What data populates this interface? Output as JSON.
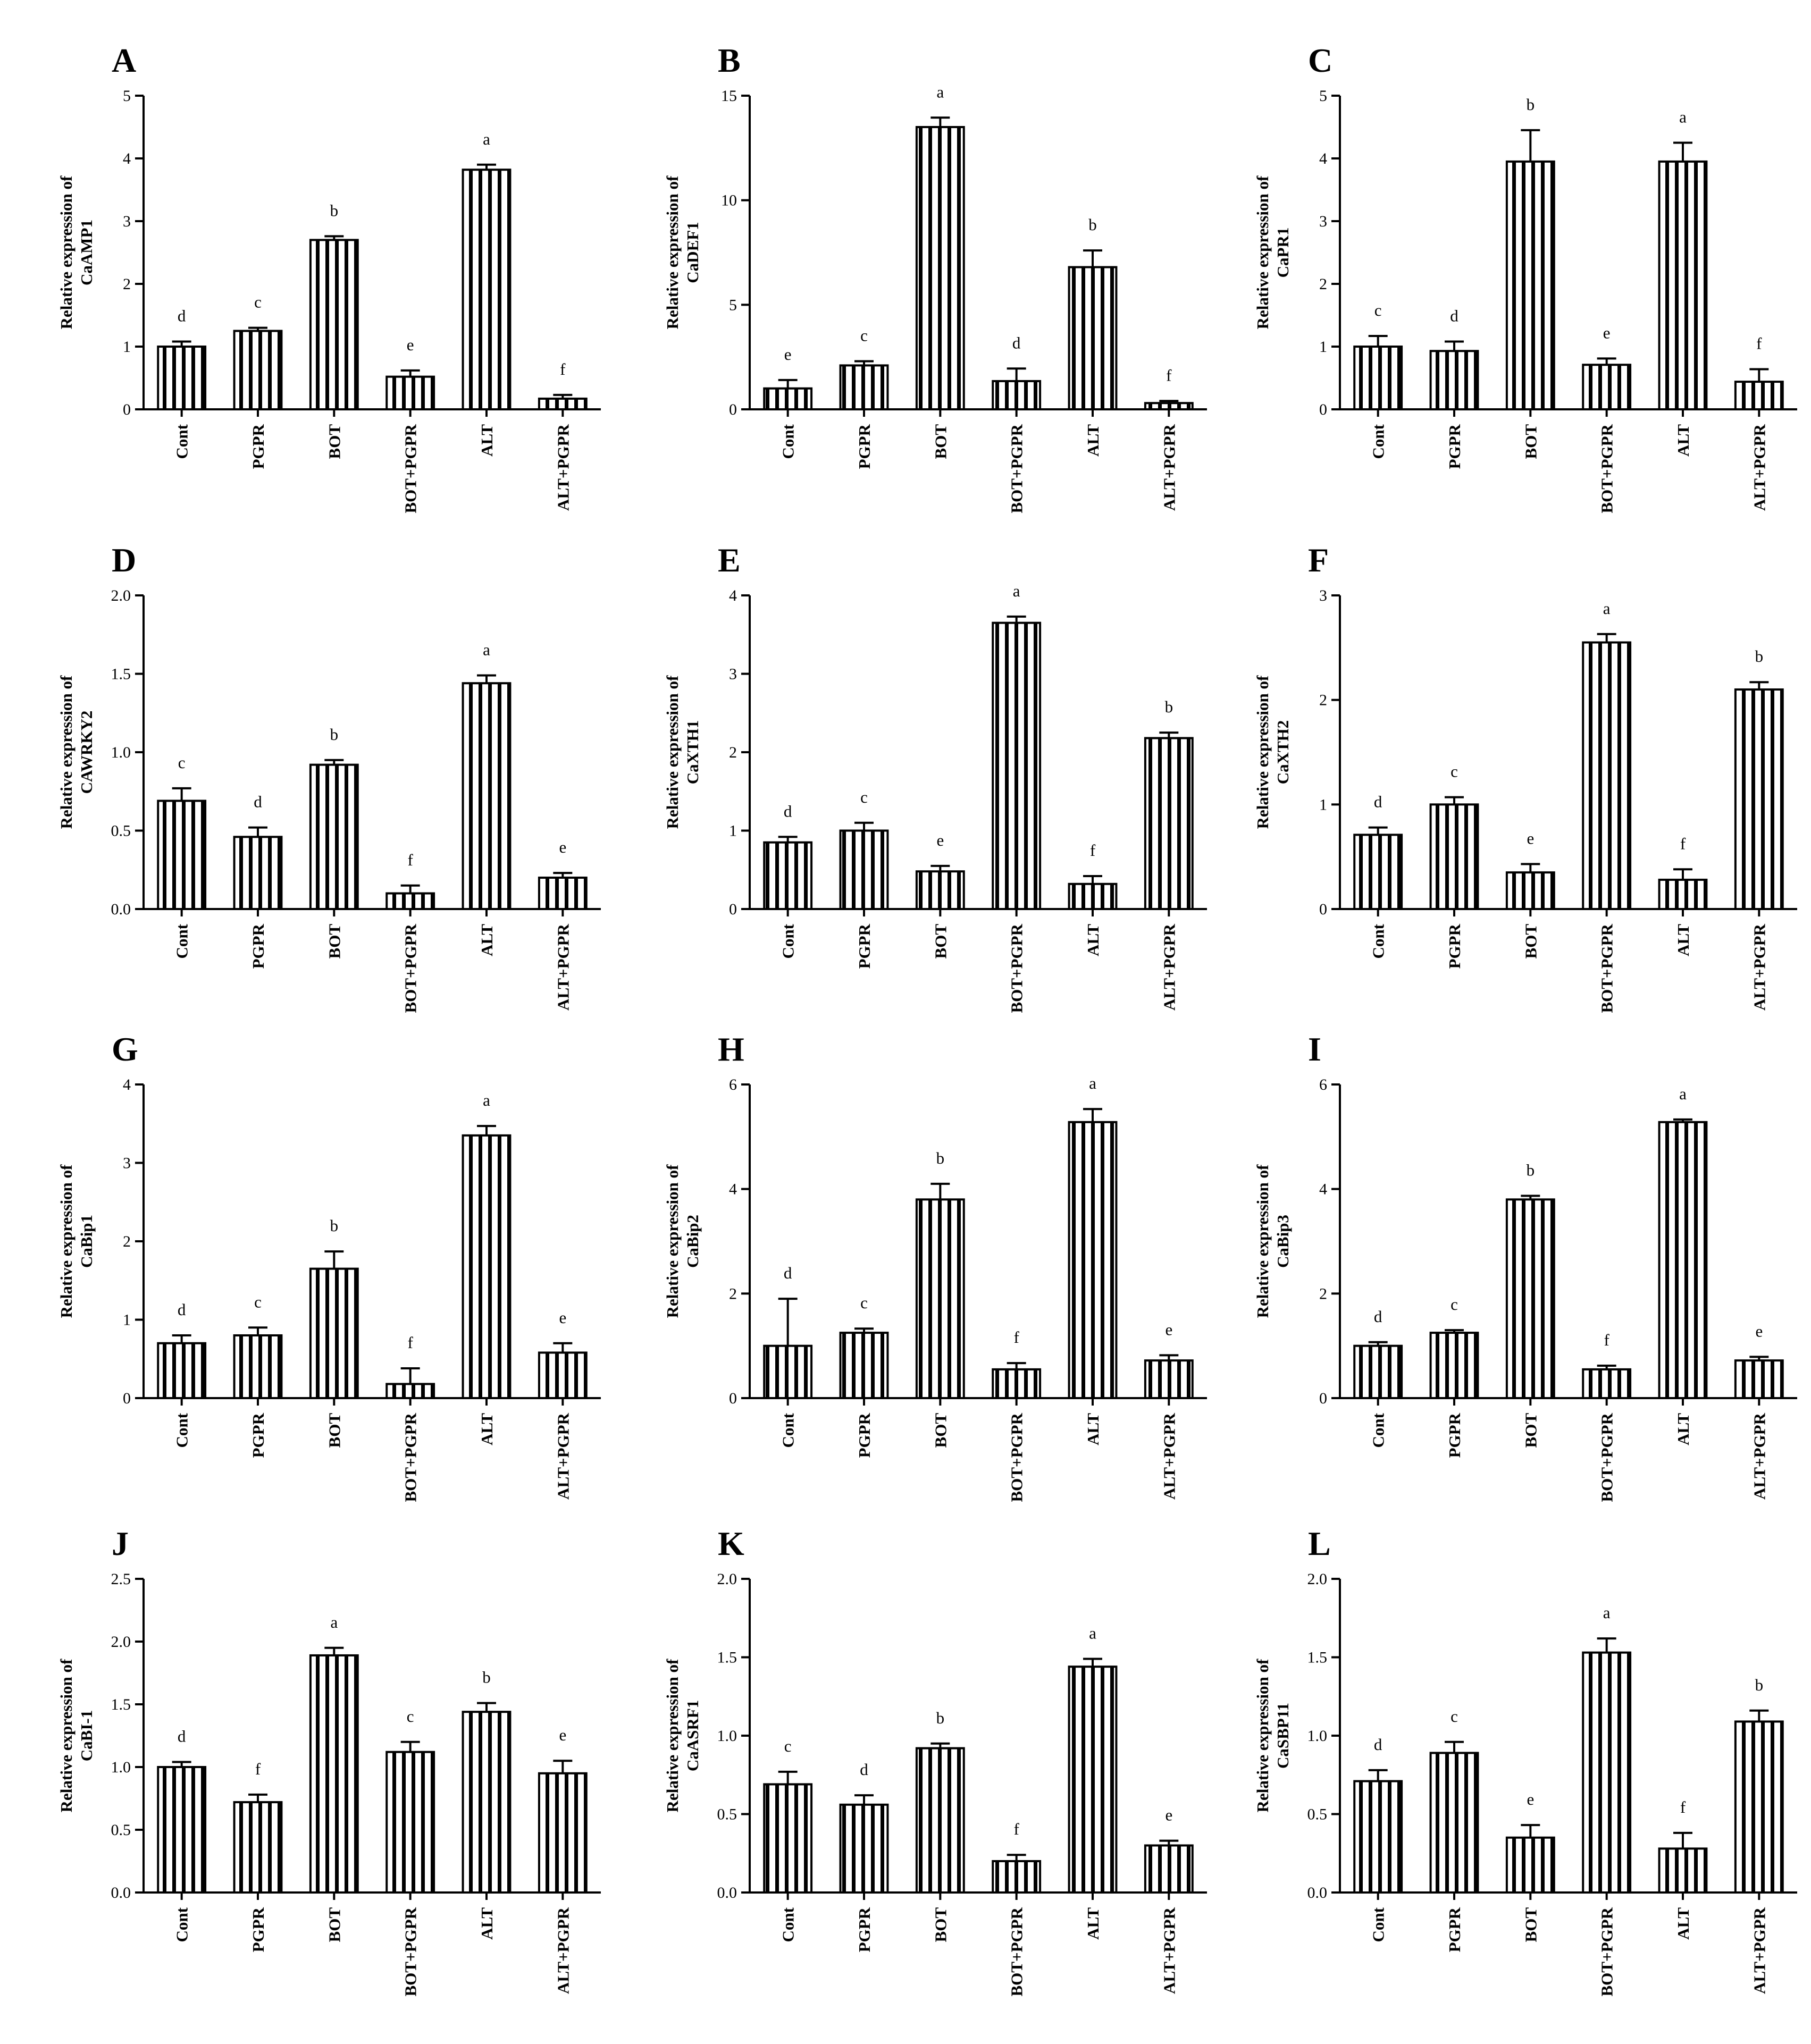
{
  "figure": {
    "background": "#ffffff",
    "bar_fill": "#ffffff",
    "bar_stripe_color": "#000000",
    "bar_pattern": "vertical-stripes"
  },
  "chart_data": [
    {
      "panel": "A",
      "type": "bar",
      "categories": [
        "Cont",
        "PGPR",
        "BOT",
        "BOT+PGPR",
        "ALT",
        "ALT+PGPR"
      ],
      "values": [
        1.0,
        1.25,
        2.7,
        0.52,
        3.82,
        0.17
      ],
      "errors": [
        0.08,
        0.05,
        0.06,
        0.1,
        0.08,
        0.06
      ],
      "letters": [
        "d",
        "c",
        "b",
        "e",
        "a",
        "f"
      ],
      "ylabel": [
        "Relative expression of",
        "CaAMP1"
      ],
      "ylim": [
        0,
        5
      ],
      "yticks": [
        "0",
        "1",
        "2",
        "3",
        "4",
        "5"
      ]
    },
    {
      "panel": "B",
      "type": "bar",
      "categories": [
        "Cont",
        "PGPR",
        "BOT",
        "BOT+PGPR",
        "ALT",
        "ALT+PGPR"
      ],
      "values": [
        1.0,
        2.1,
        13.5,
        1.35,
        6.8,
        0.3
      ],
      "errors": [
        0.4,
        0.2,
        0.45,
        0.6,
        0.8,
        0.1
      ],
      "letters": [
        "e",
        "c",
        "a",
        "d",
        "b",
        "f"
      ],
      "ylabel": [
        "Relative expression of",
        "CaDEF1"
      ],
      "ylim": [
        0,
        15
      ],
      "yticks": [
        "0",
        "5",
        "10",
        "15"
      ]
    },
    {
      "panel": "C",
      "type": "bar",
      "categories": [
        "Cont",
        "PGPR",
        "BOT",
        "BOT+PGPR",
        "ALT",
        "ALT+PGPR"
      ],
      "values": [
        1.0,
        0.93,
        3.95,
        0.71,
        3.95,
        0.44
      ],
      "errors": [
        0.17,
        0.15,
        0.5,
        0.1,
        0.3,
        0.2
      ],
      "letters": [
        "c",
        "d",
        "b",
        "e",
        "a",
        "f"
      ],
      "ylabel": [
        "Relative expression of",
        "CaPR1"
      ],
      "ylim": [
        0,
        5
      ],
      "yticks": [
        "0",
        "1",
        "2",
        "3",
        "4",
        "5"
      ]
    },
    {
      "panel": "D",
      "type": "bar",
      "categories": [
        "Cont",
        "PGPR",
        "BOT",
        "BOT+PGPR",
        "ALT",
        "ALT+PGPR"
      ],
      "values": [
        0.69,
        0.46,
        0.92,
        0.1,
        1.44,
        0.2
      ],
      "errors": [
        0.08,
        0.06,
        0.03,
        0.05,
        0.05,
        0.03
      ],
      "letters": [
        "c",
        "d",
        "b",
        "f",
        "a",
        "e"
      ],
      "ylabel": [
        "Relative expression of",
        "CAWRKY2"
      ],
      "ylim": [
        0,
        2
      ],
      "yticks": [
        "0.0",
        "0.5",
        "1.0",
        "1.5",
        "2.0"
      ]
    },
    {
      "panel": "E",
      "type": "bar",
      "categories": [
        "Cont",
        "PGPR",
        "BOT",
        "BOT+PGPR",
        "ALT",
        "ALT+PGPR"
      ],
      "values": [
        0.85,
        1.0,
        0.48,
        3.65,
        0.32,
        2.18
      ],
      "errors": [
        0.07,
        0.1,
        0.07,
        0.08,
        0.1,
        0.07
      ],
      "letters": [
        "d",
        "c",
        "e",
        "a",
        "f",
        "b"
      ],
      "ylabel": [
        "Relative expression of",
        "CaXTH1"
      ],
      "ylim": [
        0,
        4
      ],
      "yticks": [
        "0",
        "1",
        "2",
        "3",
        "4"
      ]
    },
    {
      "panel": "F",
      "type": "bar",
      "categories": [
        "Cont",
        "PGPR",
        "BOT",
        "BOT+PGPR",
        "ALT",
        "ALT+PGPR"
      ],
      "values": [
        0.71,
        1.0,
        0.35,
        2.55,
        0.28,
        2.1
      ],
      "errors": [
        0.07,
        0.07,
        0.08,
        0.08,
        0.1,
        0.07
      ],
      "letters": [
        "d",
        "c",
        "e",
        "a",
        "f",
        "b"
      ],
      "ylabel": [
        "Relative expression of",
        "CaXTH2"
      ],
      "ylim": [
        0,
        3
      ],
      "yticks": [
        "0",
        "1",
        "2",
        "3"
      ]
    },
    {
      "panel": "G",
      "type": "bar",
      "categories": [
        "Cont",
        "PGPR",
        "BOT",
        "BOT+PGPR",
        "ALT",
        "ALT+PGPR"
      ],
      "values": [
        0.7,
        0.8,
        1.65,
        0.18,
        3.35,
        0.58
      ],
      "errors": [
        0.1,
        0.1,
        0.22,
        0.2,
        0.12,
        0.12
      ],
      "letters": [
        "d",
        "c",
        "b",
        "f",
        "a",
        "e"
      ],
      "ylabel": [
        "Relative expression of",
        "CaBip1"
      ],
      "ylim": [
        0,
        4
      ],
      "yticks": [
        "0",
        "1",
        "2",
        "3",
        "4"
      ]
    },
    {
      "panel": "H",
      "type": "bar",
      "categories": [
        "Cont",
        "PGPR",
        "BOT",
        "BOT+PGPR",
        "ALT",
        "ALT+PGPR"
      ],
      "values": [
        1.0,
        1.25,
        3.8,
        0.55,
        5.28,
        0.72
      ],
      "errors": [
        0.9,
        0.08,
        0.3,
        0.12,
        0.25,
        0.1
      ],
      "letters": [
        "d",
        "c",
        "b",
        "f",
        "a",
        "e"
      ],
      "ylabel": [
        "Relative expression of",
        "CaBip2"
      ],
      "ylim": [
        0,
        6
      ],
      "yticks": [
        "0",
        "2",
        "4",
        "6"
      ]
    },
    {
      "panel": "I",
      "type": "bar",
      "categories": [
        "Cont",
        "PGPR",
        "BOT",
        "BOT+PGPR",
        "ALT",
        "ALT+PGPR"
      ],
      "values": [
        1.0,
        1.25,
        3.8,
        0.55,
        5.28,
        0.72
      ],
      "errors": [
        0.07,
        0.05,
        0.07,
        0.07,
        0.05,
        0.07
      ],
      "letters": [
        "d",
        "c",
        "b",
        "f",
        "a",
        "e"
      ],
      "ylabel": [
        "Relative expression of",
        "CaBip3"
      ],
      "ylim": [
        0,
        6
      ],
      "yticks": [
        "0",
        "2",
        "4",
        "6"
      ]
    },
    {
      "panel": "J",
      "type": "bar",
      "categories": [
        "Cont",
        "PGPR",
        "BOT",
        "BOT+PGPR",
        "ALT",
        "ALT+PGPR"
      ],
      "values": [
        1.0,
        0.72,
        1.89,
        1.12,
        1.44,
        0.95
      ],
      "errors": [
        0.04,
        0.06,
        0.06,
        0.08,
        0.07,
        0.1
      ],
      "letters": [
        "d",
        "f",
        "a",
        "c",
        "b",
        "e"
      ],
      "ylabel": [
        "Relative expression of",
        "CaBI-1"
      ],
      "ylim": [
        0,
        2.5
      ],
      "yticks": [
        "0.0",
        "0.5",
        "1.0",
        "1.5",
        "2.0",
        "2.5"
      ]
    },
    {
      "panel": "K",
      "type": "bar",
      "categories": [
        "Cont",
        "PGPR",
        "BOT",
        "BOT+PGPR",
        "ALT",
        "ALT+PGPR"
      ],
      "values": [
        0.69,
        0.56,
        0.92,
        0.2,
        1.44,
        0.3
      ],
      "errors": [
        0.08,
        0.06,
        0.03,
        0.04,
        0.05,
        0.03
      ],
      "letters": [
        "c",
        "d",
        "b",
        "f",
        "a",
        "e"
      ],
      "ylabel": [
        "Relative expression of",
        "CaASRF1"
      ],
      "ylim": [
        0,
        2
      ],
      "yticks": [
        "0.0",
        "0.5",
        "1.0",
        "1.5",
        "2.0"
      ]
    },
    {
      "panel": "L",
      "type": "bar",
      "categories": [
        "Cont",
        "PGPR",
        "BOT",
        "BOT+PGPR",
        "ALT",
        "ALT+PGPR"
      ],
      "values": [
        0.71,
        0.89,
        0.35,
        1.53,
        0.28,
        1.09
      ],
      "errors": [
        0.07,
        0.07,
        0.08,
        0.09,
        0.1,
        0.07
      ],
      "letters": [
        "d",
        "c",
        "e",
        "a",
        "f",
        "b"
      ],
      "ylabel": [
        "Relative expression of",
        "CaSBP11"
      ],
      "ylim": [
        0,
        2
      ],
      "yticks": [
        "0.0",
        "0.5",
        "1.0",
        "1.5",
        "2.0"
      ]
    }
  ]
}
